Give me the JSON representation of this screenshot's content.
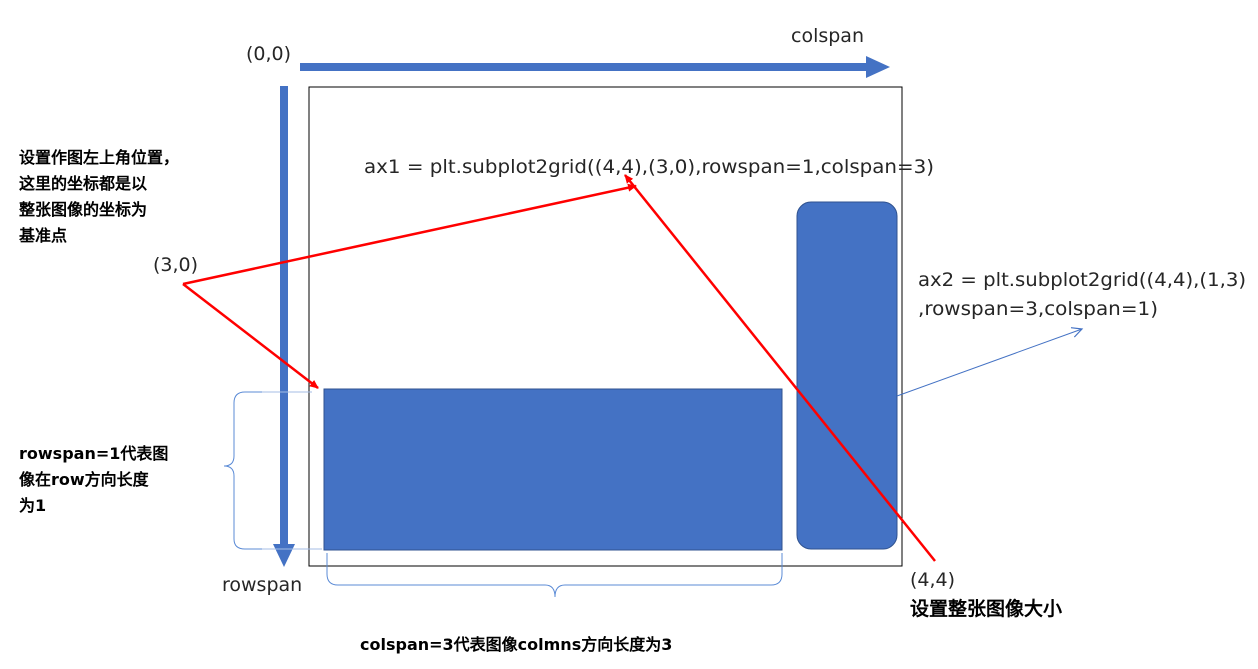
{
  "labels": {
    "origin": "(0,0)",
    "colspan_axis": "colspan",
    "rowspan_axis": "rowspan",
    "point_3_0": "(3,0)",
    "point_4_4": "(4,4)",
    "ax1_code": "ax1 = plt.subplot2grid((4,4),(3,0),rowspan=1,colspan=3)",
    "ax2_code_line1": "ax2 = plt.subplot2grid((4,4),(1,3)",
    "ax2_code_line2": ",rowspan=3,colspan=1)",
    "position_note": [
      "设置作图左上角位置，",
      "这里的坐标都是以",
      "整张图像的坐标为",
      "基准点"
    ],
    "rowspan_note": [
      "rowspan=1代表图",
      "像在row方向长度",
      "为1"
    ],
    "colspan_note": "colspan=3代表图像colmns方向长度为3",
    "figure_size_note": "设置整张图像大小"
  },
  "colors": {
    "block_fill": "#4472c4",
    "block_stroke": "#2f528f",
    "axis_arrow": "#4472c4",
    "annotation_red": "#ff0000",
    "connector_blue": "#4472c4",
    "brace": "#5b8bd6",
    "frame": "#000000"
  }
}
